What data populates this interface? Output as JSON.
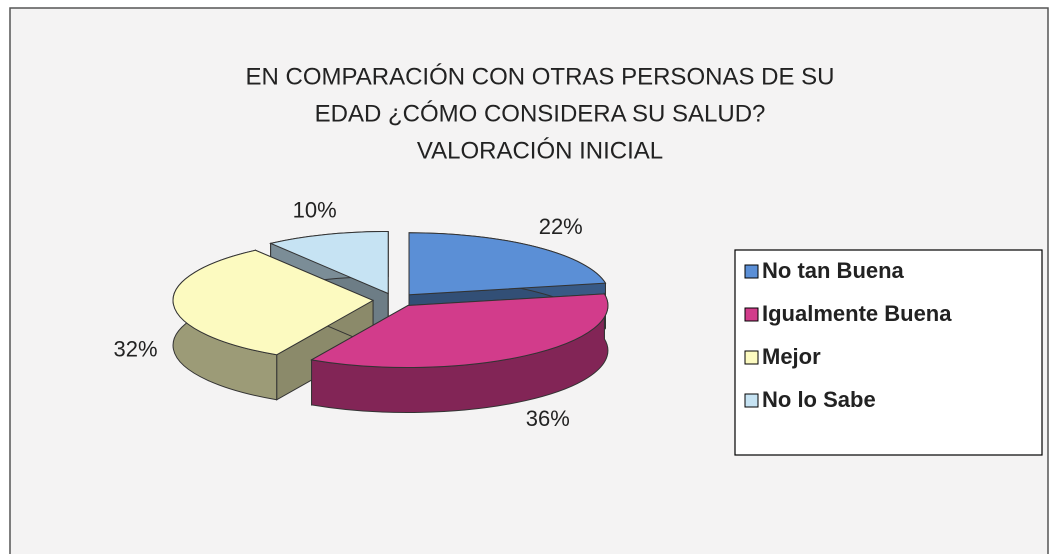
{
  "chart_data": {
    "type": "pie",
    "title": [
      "EN COMPARACIÓN CON OTRAS PERSONAS DE SU",
      "EDAD ¿CÓMO CONSIDERA SU SALUD?",
      "VALORACIÓN INICIAL"
    ],
    "categories": [
      "No tan Buena",
      "Igualmente Buena",
      "Mejor",
      "No lo Sabe"
    ],
    "values": [
      22,
      36,
      32,
      10
    ],
    "value_labels": [
      "22%",
      "36%",
      "32%",
      "10%"
    ],
    "colors": [
      "#5b8fd6",
      "#d23c8b",
      "#fcfac0",
      "#c6e3f3"
    ],
    "legend": "right"
  }
}
